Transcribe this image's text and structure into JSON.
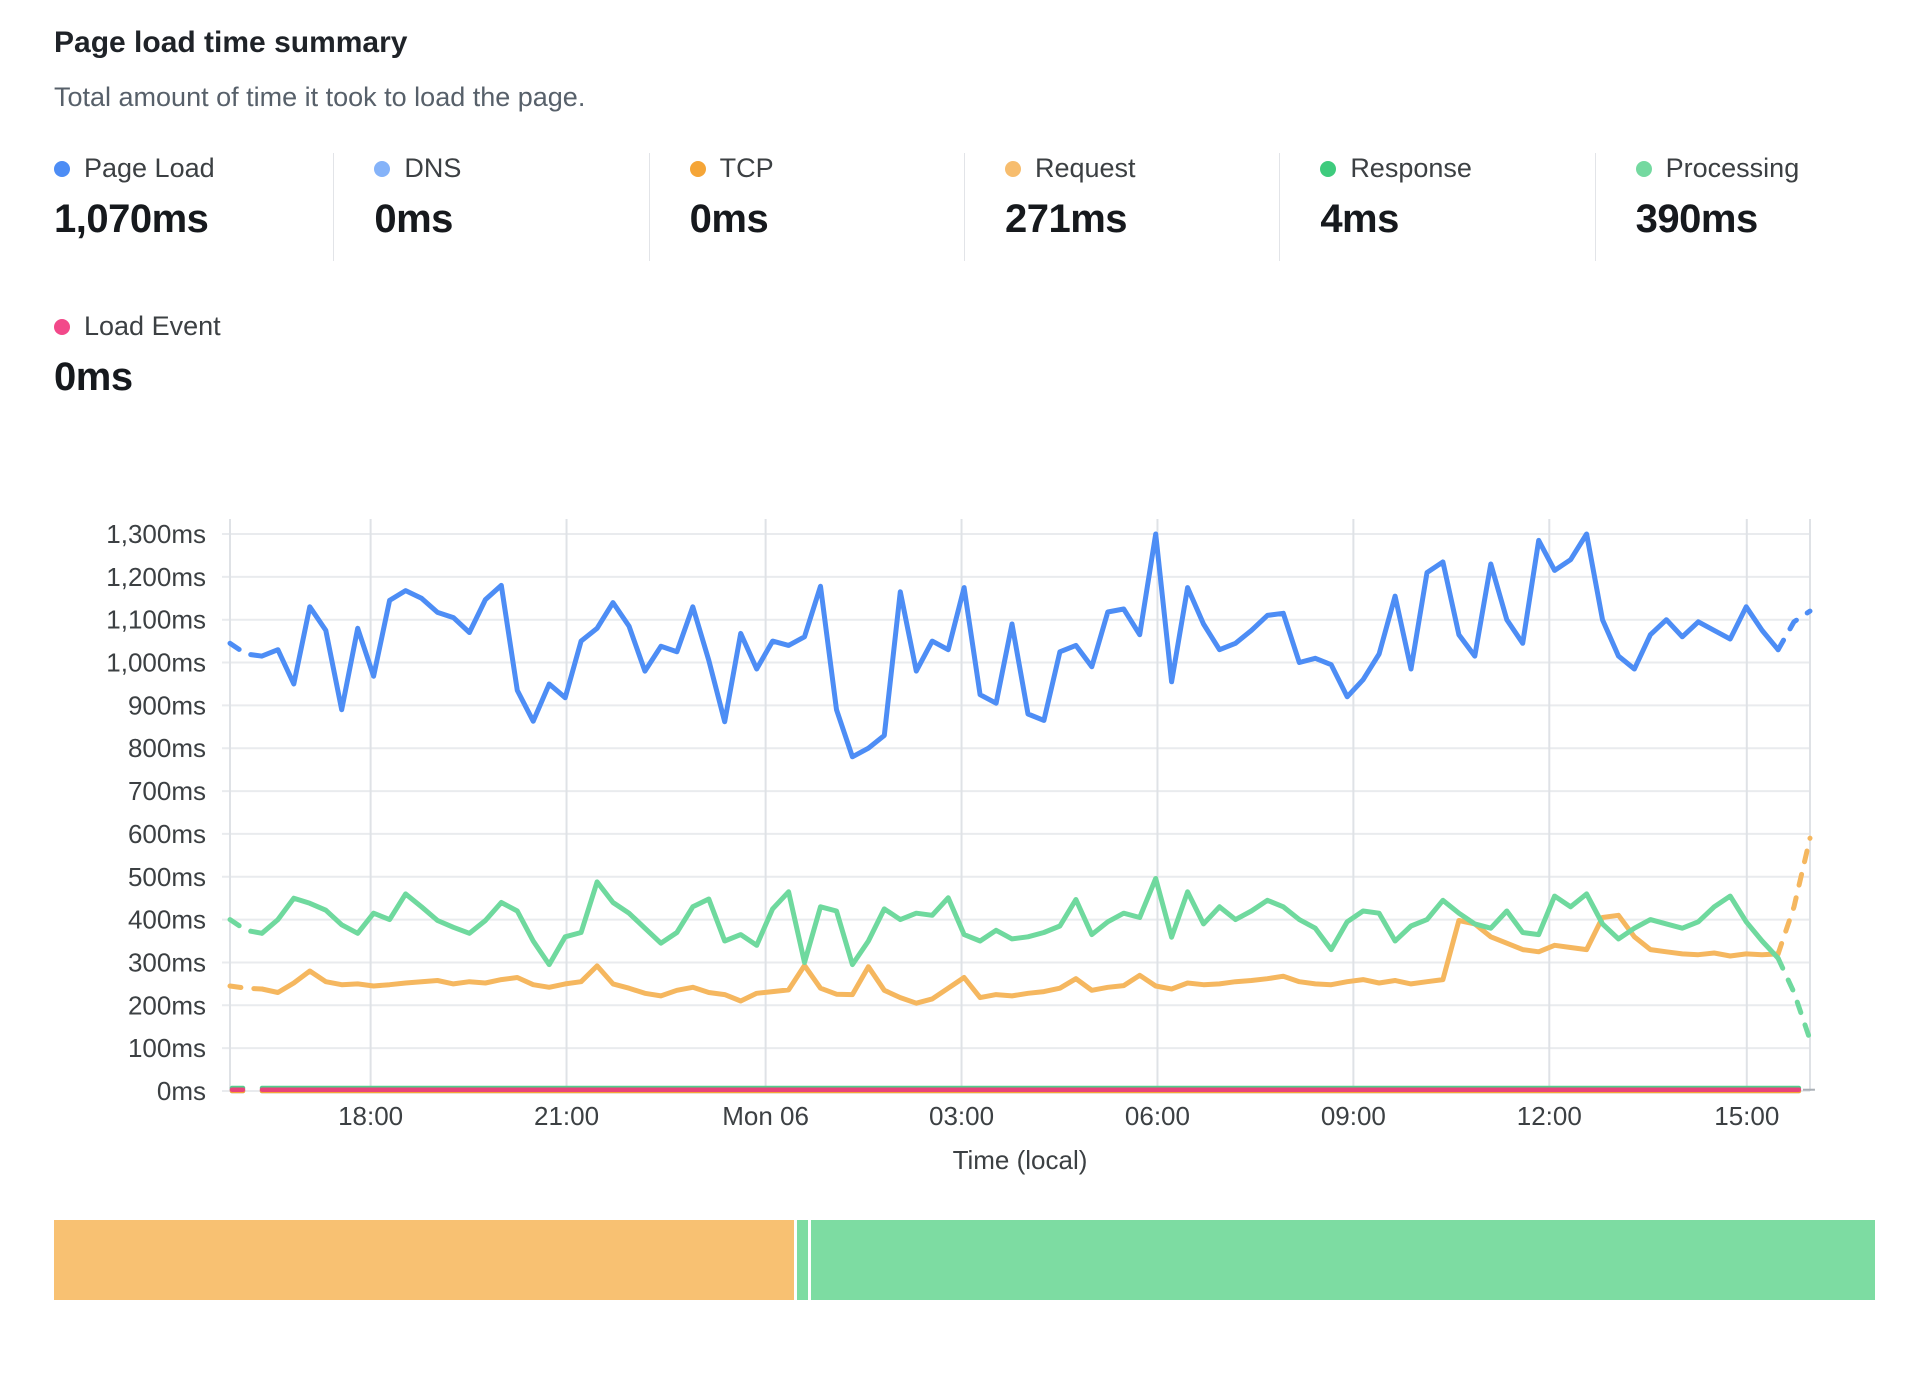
{
  "header": {
    "title": "Page load time summary",
    "subtitle": "Total amount of time it took to load the page."
  },
  "legend": {
    "row1": [
      {
        "label": "Page Load",
        "value": "1,070ms",
        "color": "#4d8df5"
      },
      {
        "label": "DNS",
        "value": "0ms",
        "color": "#85b3f9"
      },
      {
        "label": "TCP",
        "value": "0ms",
        "color": "#f5a537"
      },
      {
        "label": "Request",
        "value": "271ms",
        "color": "#f7bd6e"
      },
      {
        "label": "Response",
        "value": "4ms",
        "color": "#3ecb7d"
      },
      {
        "label": "Processing",
        "value": "390ms",
        "color": "#74d9a0"
      }
    ],
    "row2": [
      {
        "label": "Load Event",
        "value": "0ms",
        "color": "#f2498a"
      }
    ]
  },
  "chart_data": {
    "type": "line",
    "title": "Page load time summary",
    "xlabel": "Time (local)",
    "ylabel": "",
    "y_unit": "ms",
    "ylim": [
      0,
      1300
    ],
    "grid": true,
    "grid_color_h": "#e9ebee",
    "grid_color_v": "#dfe2e6",
    "axis_text_color": "#3c4043",
    "y_ticks": [
      {
        "value": 0,
        "label": "0ms"
      },
      {
        "value": 100,
        "label": "100ms"
      },
      {
        "value": 200,
        "label": "200ms"
      },
      {
        "value": 300,
        "label": "300ms"
      },
      {
        "value": 400,
        "label": "400ms"
      },
      {
        "value": 500,
        "label": "500ms"
      },
      {
        "value": 600,
        "label": "600ms"
      },
      {
        "value": 700,
        "label": "700ms"
      },
      {
        "value": 800,
        "label": "800ms"
      },
      {
        "value": 900,
        "label": "900ms"
      },
      {
        "value": 1000,
        "label": "1,000ms"
      },
      {
        "value": 1100,
        "label": "1,100ms"
      },
      {
        "value": 1200,
        "label": "1,200ms"
      },
      {
        "value": 1300,
        "label": "1,300ms"
      }
    ],
    "x_ticks": [
      {
        "label": "18:00",
        "f": 0.089
      },
      {
        "label": "21:00",
        "f": 0.213
      },
      {
        "label": "Mon 06",
        "f": 0.339
      },
      {
        "label": "03:00",
        "f": 0.463
      },
      {
        "label": "06:00",
        "f": 0.587
      },
      {
        "label": "09:00",
        "f": 0.711
      },
      {
        "label": "12:00",
        "f": 0.835
      },
      {
        "label": "15:00",
        "f": 0.96
      }
    ],
    "x_span_note": "approx 24h of samples every 15 minutes, Sun ~15:50 to Mon ~15:55",
    "legend_position": "top",
    "series": [
      {
        "name": "DNS",
        "color": "#85b3f9",
        "flat_value": 0
      },
      {
        "name": "TCP",
        "color": "#f5a537",
        "flat_value": 0
      },
      {
        "name": "Response",
        "color": "#52ce8c",
        "flat_value": 7
      },
      {
        "name": "Load Event",
        "color": "#e8437a",
        "flat_value": 3,
        "end_tick": true
      },
      {
        "name": "Request",
        "color": "#f5b75f",
        "dashed_head_points": 2,
        "dashed_tail_points": 2,
        "values": [
          245,
          240,
          238,
          230,
          252,
          280,
          255,
          248,
          250,
          245,
          248,
          252,
          255,
          258,
          250,
          255,
          252,
          260,
          265,
          248,
          242,
          250,
          255,
          292,
          250,
          240,
          228,
          222,
          235,
          242,
          230,
          225,
          210,
          228,
          232,
          236,
          293,
          240,
          226,
          225,
          290,
          235,
          218,
          205,
          215,
          240,
          265,
          218,
          225,
          222,
          228,
          232,
          240,
          262,
          235,
          242,
          246,
          270,
          245,
          238,
          252,
          248,
          250,
          255,
          258,
          262,
          268,
          255,
          250,
          248,
          255,
          260,
          252,
          258,
          250,
          255,
          260,
          398,
          390,
          360,
          345,
          330,
          325,
          340,
          335,
          330,
          405,
          410,
          360,
          330,
          325,
          320,
          318,
          322,
          315,
          320,
          318,
          320,
          430,
          590
        ]
      },
      {
        "name": "Processing",
        "color": "#6fd99e",
        "dashed_head_points": 2,
        "dashed_tail_points": 2,
        "values": [
          400,
          375,
          368,
          400,
          450,
          438,
          422,
          388,
          368,
          415,
          400,
          460,
          430,
          398,
          382,
          368,
          398,
          440,
          420,
          350,
          295,
          360,
          370,
          488,
          440,
          415,
          380,
          345,
          370,
          430,
          448,
          350,
          365,
          340,
          425,
          465,
          300,
          430,
          420,
          295,
          350,
          425,
          400,
          415,
          410,
          451,
          365,
          350,
          375,
          355,
          360,
          370,
          385,
          447,
          365,
          395,
          415,
          405,
          496,
          359,
          465,
          390,
          430,
          400,
          420,
          445,
          430,
          400,
          380,
          330,
          395,
          420,
          415,
          350,
          385,
          400,
          445,
          415,
          390,
          380,
          420,
          370,
          365,
          455,
          430,
          460,
          390,
          355,
          380,
          400,
          390,
          380,
          395,
          430,
          455,
          395,
          350,
          310,
          230,
          120
        ]
      },
      {
        "name": "Page Load",
        "color": "#4d8df5",
        "dashed_head_points": 2,
        "dashed_tail_points": 2,
        "values": [
          1045,
          1020,
          1015,
          1030,
          950,
          1130,
          1075,
          890,
          1080,
          968,
          1145,
          1168,
          1150,
          1117,
          1105,
          1070,
          1147,
          1180,
          935,
          863,
          950,
          918,
          1050,
          1080,
          1140,
          1085,
          980,
          1038,
          1025,
          1130,
          1005,
          862,
          1068,
          985,
          1050,
          1040,
          1060,
          1178,
          890,
          780,
          800,
          830,
          1165,
          980,
          1050,
          1030,
          1175,
          925,
          905,
          1090,
          880,
          865,
          1025,
          1040,
          990,
          1118,
          1125,
          1065,
          1300,
          955,
          1175,
          1090,
          1030,
          1045,
          1075,
          1110,
          1115,
          1000,
          1010,
          995,
          920,
          960,
          1020,
          1155,
          985,
          1210,
          1235,
          1065,
          1015,
          1230,
          1100,
          1045,
          1285,
          1215,
          1240,
          1300,
          1100,
          1015,
          985,
          1065,
          1100,
          1060,
          1095,
          1075,
          1055,
          1130,
          1075,
          1030,
          1095,
          1120
        ]
      }
    ]
  },
  "bar": {
    "label": "load-time-composition",
    "total_ms": 665,
    "segments": [
      {
        "name": "Request",
        "ms": 271,
        "color": "#f8c172"
      },
      {
        "name": "Response",
        "ms": 4,
        "color": "#7ddca2"
      },
      {
        "name": "Processing",
        "ms": 390,
        "color": "#7ddca2"
      }
    ]
  }
}
